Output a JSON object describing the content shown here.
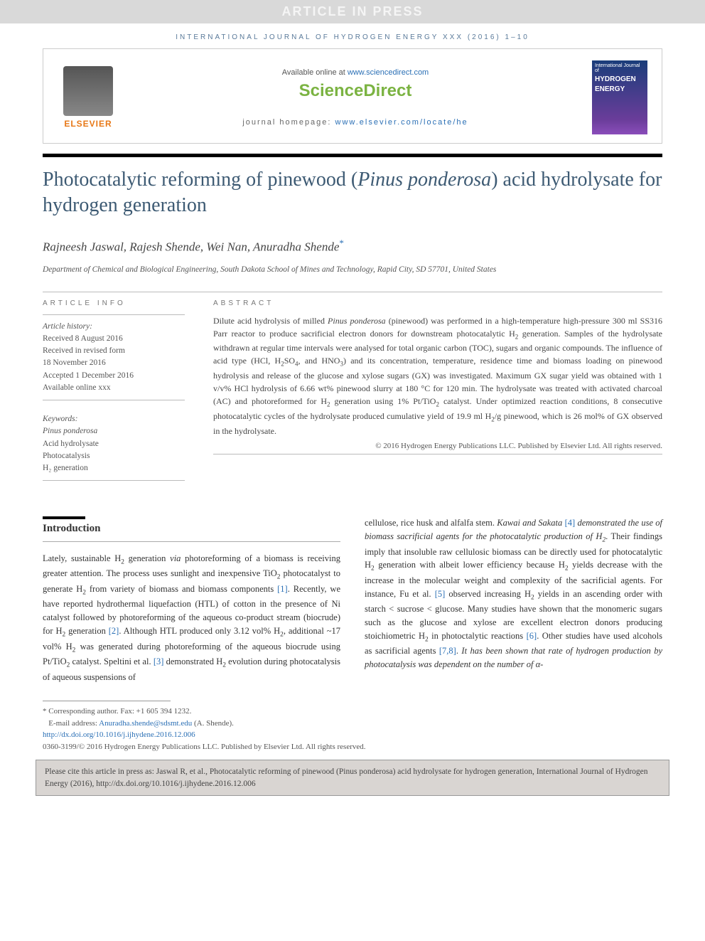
{
  "banner": {
    "text": "ARTICLE IN PRESS"
  },
  "journal_ref": "INTERNATIONAL JOURNAL OF HYDROGEN ENERGY XXX (2016) 1–10",
  "header": {
    "elsevier_label": "ELSEVIER",
    "available_prefix": "Available online at ",
    "available_link": "www.sciencedirect.com",
    "brand": "ScienceDirect",
    "hp_prefix": "journal homepage: ",
    "hp_link": "www.elsevier.com/locate/he",
    "cover_small": "International Journal of",
    "cover_big1": "HYDROGEN",
    "cover_big2": "ENERGY"
  },
  "title": {
    "line": "Photocatalytic reforming of pinewood (Pinus ponderosa) acid hydrolysate for hydrogen generation"
  },
  "authors": "Rajneesh Jaswal, Rajesh Shende, Wei Nan, Anuradha Shende",
  "affiliation": "Department of Chemical and Biological Engineering, South Dakota School of Mines and Technology, Rapid City, SD 57701, United States",
  "info": {
    "label": "ARTICLE INFO",
    "history_label": "Article history:",
    "received": "Received 8 August 2016",
    "revised1": "Received in revised form",
    "revised2": "18 November 2016",
    "accepted": "Accepted 1 December 2016",
    "online": "Available online xxx",
    "keywords_label": "Keywords:",
    "kw1": "Pinus ponderosa",
    "kw2": "Acid hydrolysate",
    "kw3": "Photocatalysis",
    "kw4": "H₂ generation"
  },
  "abstract": {
    "label": "ABSTRACT",
    "text": "Dilute acid hydrolysis of milled Pinus ponderosa (pinewood) was performed in a high-temperature high-pressure 300 ml SS316 Parr reactor to produce sacrificial electron donors for downstream photocatalytic H₂ generation. Samples of the hydrolysate withdrawn at regular time intervals were analysed for total organic carbon (TOC), sugars and organic compounds. The influence of acid type (HCl, H₂SO₄, and HNO₃) and its concentration, temperature, residence time and biomass loading on pinewood hydrolysis and release of the glucose and xylose sugars (GX) was investigated. Maximum GX sugar yield was obtained with 1 v/v% HCl hydrolysis of 6.66 wt% pinewood slurry at 180 °C for 120 min. The hydrolysate was treated with activated charcoal (AC) and photoreformed for H₂ generation using 1% Pt/TiO₂ catalyst. Under optimized reaction conditions, 8 consecutive photocatalytic cycles of the hydrolysate produced cumulative yield of 19.9 ml H₂/g pinewood, which is 26 mol% of GX observed in the hydrolysate.",
    "copyright": "© 2016 Hydrogen Energy Publications LLC. Published by Elsevier Ltd. All rights reserved."
  },
  "intro": {
    "heading": "Introduction",
    "col1": "Lately, sustainable H₂ generation via photoreforming of a biomass is receiving greater attention. The process uses sunlight and inexpensive TiO₂ photocatalyst to generate H₂ from variety of biomass and biomass components [1]. Recently, we have reported hydrothermal liquefaction (HTL) of cotton in the presence of Ni catalyst followed by photoreforming of the aqueous co-product stream (biocrude) for H₂ generation [2]. Although HTL produced only 3.12 vol% H₂, additional ~17 vol% H₂ was generated during photoreforming of the aqueous biocrude using Pt/TiO₂ catalyst. Speltini et al. [3] demonstrated H₂ evolution during photocatalysis of aqueous suspensions of",
    "col2": "cellulose, rice husk and alfalfa stem. Kawai and Sakata [4] demonstrated the use of biomass sacrificial agents for the photocatalytic production of H₂. Their findings imply that insoluble raw cellulosic biomass can be directly used for photocatalytic H₂ generation with albeit lower efficiency because H₂ yields decrease with the increase in the molecular weight and complexity of the sacrificial agents. For instance, Fu et al. [5] observed increasing H₂ yields in an ascending order with starch < sucrose < glucose. Many studies have shown that the monomeric sugars such as the glucose and xylose are excellent electron donors producing stoichiometric H₂ in photoctalytic reactions [6]. Other studies have used alcohols as sacrificial agents [7,8]. It has been shown that rate of hydrogen production by photocatalysis was dependent on the number of α-"
  },
  "footnotes": {
    "corr": "* Corresponding author. Fax: +1 605 394 1232.",
    "email_label": "E-mail address: ",
    "email": "Anuradha.shende@sdsmt.edu",
    "email_suffix": " (A. Shende).",
    "doi": "http://dx.doi.org/10.1016/j.ijhydene.2016.12.006",
    "issn": "0360-3199/© 2016 Hydrogen Energy Publications LLC. Published by Elsevier Ltd. All rights reserved."
  },
  "citebox": "Please cite this article in press as: Jaswal R, et al., Photocatalytic reforming of pinewood (Pinus ponderosa) acid hydrolysate for hydrogen generation, International Journal of Hydrogen Energy (2016), http://dx.doi.org/10.1016/j.ijhydene.2016.12.006",
  "colors": {
    "link": "#2a6fb5",
    "accent_orange": "#e77817",
    "accent_green": "#7bb342",
    "title_blue": "#3d5a73"
  }
}
